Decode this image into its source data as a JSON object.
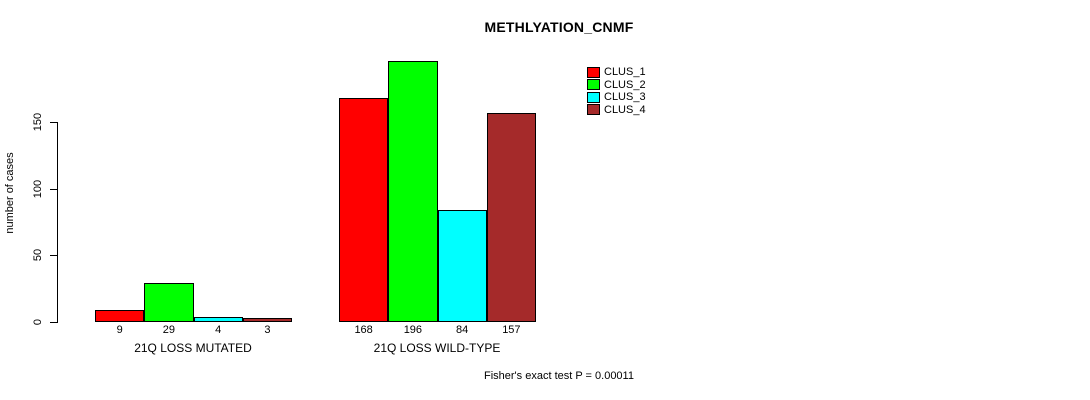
{
  "title": "METHLYATION_CNMF",
  "y_axis": {
    "label": "number of cases",
    "ticks": [
      0,
      50,
      100,
      150
    ]
  },
  "footer_annotation": "Fisher's exact test P = 0.00011",
  "legend": {
    "position": "top-right",
    "items": [
      {
        "label": "CLUS_1",
        "color": "#FF0000"
      },
      {
        "label": "CLUS_2",
        "color": "#00FF00"
      },
      {
        "label": "CLUS_3",
        "color": "#00FFFF"
      },
      {
        "label": "CLUS_4",
        "color": "#A52A2A"
      }
    ]
  },
  "chart_data": {
    "type": "bar",
    "title": "METHLYATION_CNMF",
    "xlabel": "",
    "ylabel": "number of cases",
    "ylim": [
      0,
      200
    ],
    "yticks": [
      0,
      50,
      100,
      150
    ],
    "grid": false,
    "legend_position": "top-right",
    "categories": [
      "21Q LOSS MUTATED",
      "21Q LOSS WILD-TYPE"
    ],
    "series": [
      {
        "name": "CLUS_1",
        "color": "#FF0000",
        "values": [
          9,
          168
        ]
      },
      {
        "name": "CLUS_2",
        "color": "#00FF00",
        "values": [
          29,
          196
        ]
      },
      {
        "name": "CLUS_3",
        "color": "#00FFFF",
        "values": [
          4,
          84
        ]
      },
      {
        "name": "CLUS_4",
        "color": "#A52A2A",
        "values": [
          3,
          157
        ]
      }
    ],
    "bar_value_labels": [
      [
        "9",
        "29",
        "4",
        "3"
      ],
      [
        "168",
        "196",
        "84",
        "157"
      ]
    ],
    "annotation": "Fisher's exact test P = 0.00011"
  }
}
